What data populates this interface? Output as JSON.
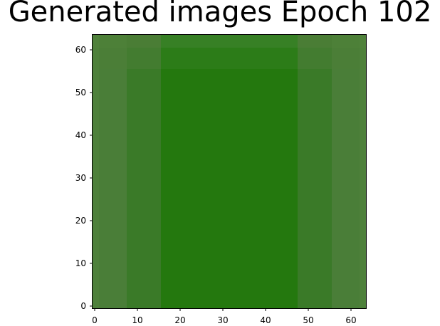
{
  "chart_data": {
    "type": "heatmap",
    "title": "Generated images Epoch 102",
    "xlabel": "",
    "ylabel": "",
    "x_range": [
      -0.5,
      63.5
    ],
    "y_range": [
      63.5,
      -0.5
    ],
    "x_ticks": [
      0,
      10,
      20,
      30,
      40,
      50,
      60
    ],
    "y_ticks": [
      0,
      10,
      20,
      30,
      40,
      50,
      60
    ],
    "grid": false,
    "image_size": [
      64,
      64
    ],
    "column_band_edges": [
      0,
      8,
      16,
      48,
      56,
      64
    ],
    "column_band_colors": [
      "#4a7e38",
      "#3a7a28",
      "#24780e",
      "#3a7a28",
      "#4a7e38"
    ],
    "row_shading": [
      {
        "rows": [
          0,
          3
        ],
        "colors": [
          "#4d8038",
          "#4a7d35",
          "#378025",
          "#4a7d35",
          "#4d8038"
        ]
      },
      {
        "rows": [
          3,
          8
        ],
        "colors": [
          "#4b7e37",
          "#437c30",
          "#2c7c18",
          "#437c30",
          "#4b7e37"
        ]
      }
    ],
    "edge_column_color": "#558842"
  }
}
